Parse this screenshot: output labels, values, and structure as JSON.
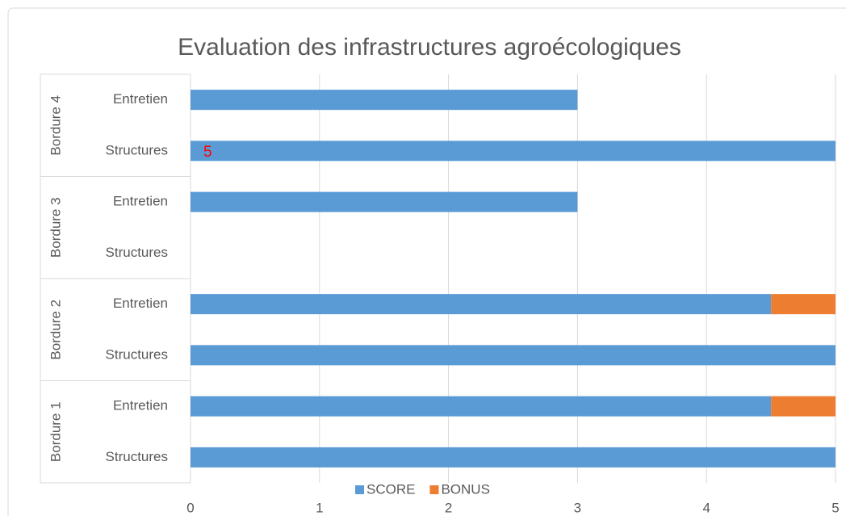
{
  "chart_data": {
    "type": "stacked_barh",
    "title": "Evaluation des infrastructures agroécologiques",
    "groups": [
      "Bordure 1",
      "Bordure 2",
      "Bordure 3",
      "Bordure 4"
    ],
    "categories": [
      "Structures",
      "Entretien",
      "Structures",
      "Entretien",
      "Structures",
      "Entretien",
      "Structures",
      "Entretien"
    ],
    "series": [
      {
        "name": "SCORE",
        "color": "#5b9bd5",
        "values": [
          5,
          4.5,
          5,
          4.5,
          null,
          3,
          5,
          3
        ]
      },
      {
        "name": "BONUS",
        "color": "#ed7d31",
        "values": [
          null,
          0.5,
          null,
          0.5,
          null,
          null,
          null,
          null
        ]
      }
    ],
    "annotations": [
      "5"
    ],
    "xlim": [
      0,
      5
    ],
    "xticks": [
      0,
      1,
      2,
      3,
      4,
      5
    ],
    "grid": true,
    "legend": "bottom"
  }
}
